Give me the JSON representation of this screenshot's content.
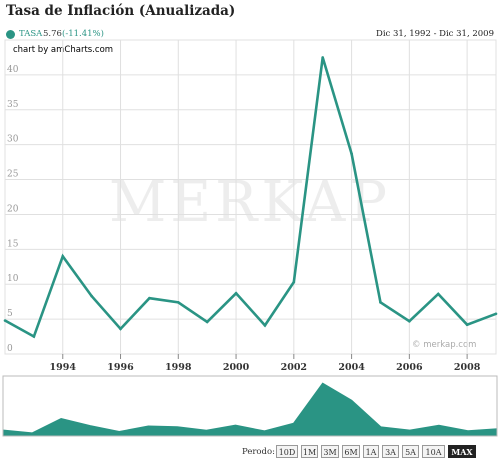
{
  "title": "Tasa de Inflación (Anualizada)",
  "legend": {
    "series_name": "TASA",
    "value": "5.76",
    "change": "(-11.41%)",
    "date_range": "Dic 31, 1992 - Dic 31, 2009"
  },
  "credit": "chart by amCharts.com",
  "watermark": "MERKAP",
  "copyright": "© merkap.com",
  "colors": {
    "series": "#2a9484",
    "grid": "#e0e0e0",
    "axis": "#999999"
  },
  "period": {
    "label": "Perodo:",
    "buttons": [
      "10D",
      "1M",
      "3M",
      "6M",
      "1A",
      "3A",
      "5A",
      "10A",
      "MAX"
    ],
    "active": "MAX"
  },
  "chart_data": {
    "type": "line",
    "x": [
      1992,
      1993,
      1994,
      1995,
      1996,
      1997,
      1998,
      1999,
      2000,
      2001,
      2002,
      2003,
      2004,
      2005,
      2006,
      2007,
      2008,
      2009
    ],
    "series": [
      {
        "name": "TASA",
        "values": [
          4.8,
          2.5,
          14.0,
          8.3,
          3.6,
          8.0,
          7.4,
          4.6,
          8.7,
          4.1,
          10.3,
          42.5,
          28.7,
          7.4,
          4.7,
          8.6,
          4.2,
          5.76
        ]
      }
    ],
    "xlim": [
      1992,
      2009
    ],
    "ylim": [
      0,
      45
    ],
    "yticks": [
      0,
      5,
      10,
      15,
      20,
      25,
      30,
      35,
      40
    ],
    "xticks": [
      1994,
      1996,
      1998,
      2000,
      2002,
      2004,
      2006,
      2008
    ],
    "ytick_labels": [
      "0",
      "5",
      "10",
      "15",
      "20",
      "25",
      "30",
      "35",
      "40"
    ],
    "xtick_labels": [
      "1994",
      "1996",
      "1998",
      "2000",
      "2002",
      "2004",
      "2006",
      "2008"
    ],
    "grid": true,
    "legend_position": "top-left"
  }
}
